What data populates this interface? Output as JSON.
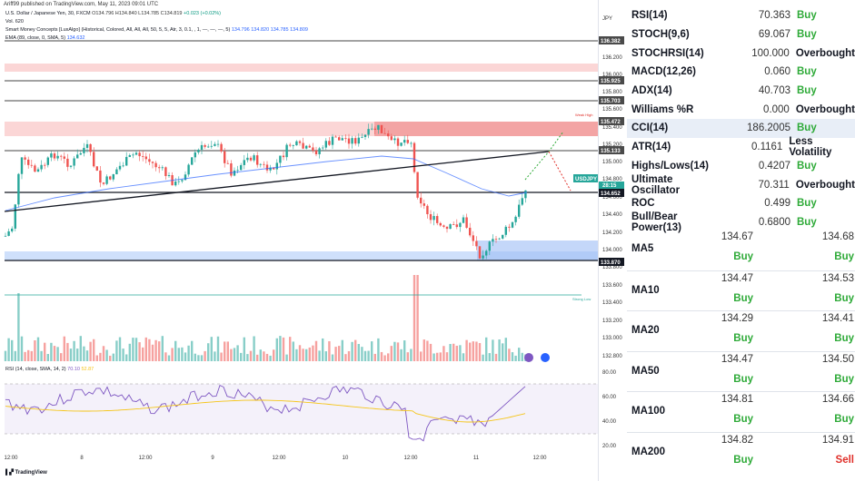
{
  "meta": {
    "publisher_line": "Ariff99 published on TradingView.com, May 11, 2023 09:01 UTC",
    "brand": "TradingView"
  },
  "legend": {
    "symbol": "U.S. Dollar / Japanese Yen, 30, FXCM",
    "ohlc": "O134.796 H134.840 L134.785 C134.819",
    "change": "+0.023 (+0.02%)",
    "volume": "Vol. 620",
    "smc": "Smart Money Concepts [LuxAlgo] (Historical, Colored, All, All, All, 50, 5, 5, Atr, 3, 0.1, , 1, —, —, —, 5)",
    "smc_values": "134.796  134.820  134.785  134.809",
    "ema": "EMA (89, close, 0, SMA, 5)",
    "ema_value": "134.632",
    "rsi": "RSI (14, close, SMA, 14, 2)",
    "rsi_values": "70.10",
    "rsi_ma_value": "52.87"
  },
  "price_axis": {
    "currency": "JPY",
    "ticks": [
      "136.200",
      "136.000",
      "135.800",
      "135.600",
      "135.400",
      "135.200",
      "135.000",
      "134.800",
      "134.600",
      "134.400",
      "134.200",
      "134.000",
      "133.800",
      "133.600",
      "133.400",
      "133.200",
      "133.000",
      "132.800"
    ],
    "tags": [
      {
        "label": "136.382",
        "kind": "level"
      },
      {
        "label": "135.925",
        "kind": "level"
      },
      {
        "label": "135.703",
        "kind": "level"
      },
      {
        "label": "135.472",
        "kind": "level"
      },
      {
        "label": "135.133",
        "kind": "level"
      },
      {
        "label": "USDJPY",
        "kind": "symbol"
      },
      {
        "label": "134.819",
        "kind": "price"
      },
      {
        "label": "28:15",
        "kind": "timer"
      },
      {
        "label": "134.652",
        "kind": "level-dark"
      },
      {
        "label": "133.870",
        "kind": "level-dark"
      }
    ]
  },
  "rsi_axis": {
    "ticks": [
      "80.00",
      "60.00",
      "40.00",
      "20.00"
    ]
  },
  "time_axis": {
    "ticks": [
      "12:00",
      "8",
      "12:00",
      "9",
      "12:00",
      "10",
      "12:00",
      "11",
      "12:00"
    ]
  },
  "chart_labels": {
    "weak_high": "Weak High",
    "strong_low": "Strong Low"
  },
  "oscillators": [
    {
      "name": "RSI(14)",
      "value": "70.363",
      "action": "Buy",
      "highlight": false
    },
    {
      "name": "STOCH(9,6)",
      "value": "69.067",
      "action": "Buy",
      "highlight": false
    },
    {
      "name": "STOCHRSI(14)",
      "value": "100.000",
      "action": "Overbought",
      "highlight": false
    },
    {
      "name": "MACD(12,26)",
      "value": "0.060",
      "action": "Buy",
      "highlight": false
    },
    {
      "name": "ADX(14)",
      "value": "40.703",
      "action": "Buy",
      "highlight": false
    },
    {
      "name": "Williams %R",
      "value": "0.000",
      "action": "Overbought",
      "highlight": false
    },
    {
      "name": "CCI(14)",
      "value": "186.2005",
      "action": "Buy",
      "highlight": true
    },
    {
      "name": "ATR(14)",
      "value": "0.1161",
      "action": "Less Volatility",
      "highlight": false
    },
    {
      "name": "Highs/Lows(14)",
      "value": "0.4207",
      "action": "Buy",
      "highlight": false
    },
    {
      "name": "Ultimate Oscillator",
      "value": "70.311",
      "action": "Overbought",
      "highlight": false
    },
    {
      "name": "ROC",
      "value": "0.499",
      "action": "Buy",
      "highlight": false
    },
    {
      "name": "Bull/Bear Power(13)",
      "value": "0.6800",
      "action": "Buy",
      "highlight": false
    }
  ],
  "moving_averages": [
    {
      "name": "MA5",
      "simple": "134.67",
      "simple_action": "Buy",
      "exp": "134.68",
      "exp_action": "Buy"
    },
    {
      "name": "MA10",
      "simple": "134.47",
      "simple_action": "Buy",
      "exp": "134.53",
      "exp_action": "Buy"
    },
    {
      "name": "MA20",
      "simple": "134.29",
      "simple_action": "Buy",
      "exp": "134.41",
      "exp_action": "Buy"
    },
    {
      "name": "MA50",
      "simple": "134.47",
      "simple_action": "Buy",
      "exp": "134.50",
      "exp_action": "Buy"
    },
    {
      "name": "MA100",
      "simple": "134.81",
      "simple_action": "Buy",
      "exp": "134.66",
      "exp_action": "Buy"
    },
    {
      "name": "MA200",
      "simple": "134.82",
      "simple_action": "Buy",
      "exp": "134.91",
      "exp_action": "Sell"
    }
  ],
  "colors": {
    "up": "#26a69a",
    "down": "#ef5350",
    "ema": "#2962ff",
    "trendline": "#131722",
    "buy": "#2eaa38",
    "sell": "#e0302a"
  }
}
